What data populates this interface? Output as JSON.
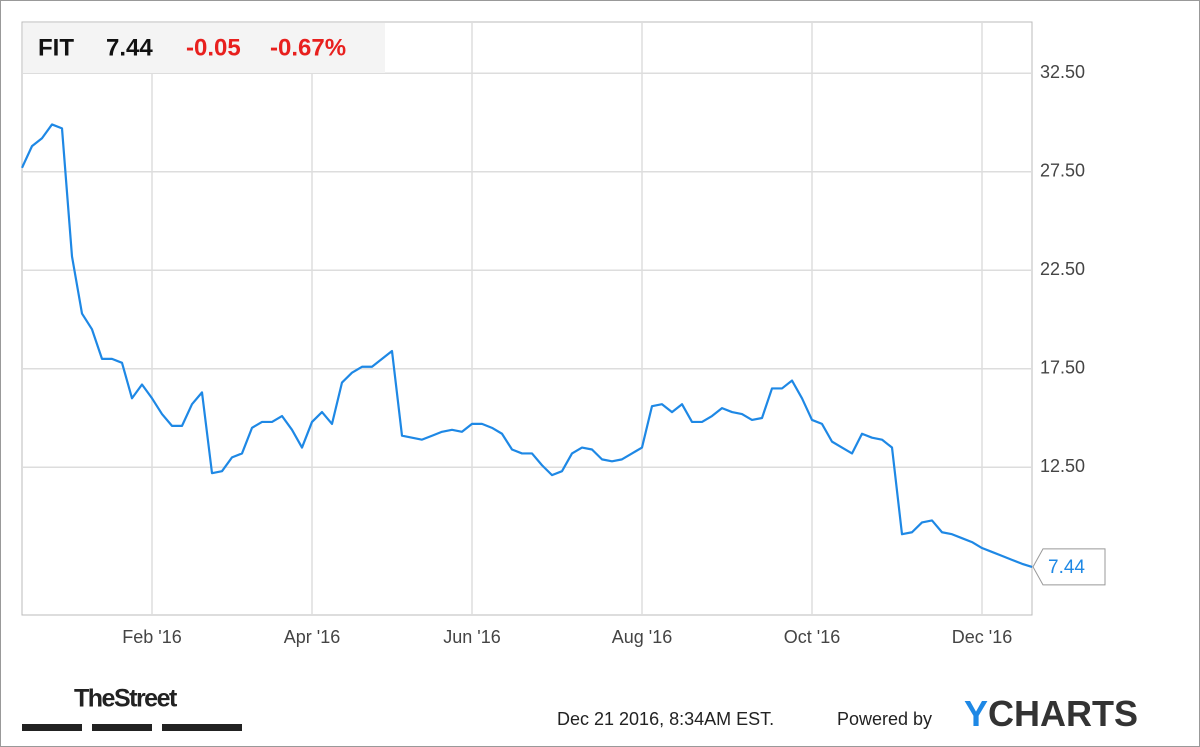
{
  "chart_data": {
    "type": "line",
    "ticker": "FIT",
    "change": "-0.05",
    "change_percent": "-0.67%",
    "color": "#1e88e5",
    "categories": [
      null,
      null,
      null,
      null,
      null,
      null,
      null,
      null,
      null,
      null,
      null,
      null,
      null,
      "Feb '16",
      null,
      null,
      null,
      null,
      null,
      null,
      null,
      null,
      null,
      null,
      null,
      null,
      null,
      null,
      null,
      "Apr '16",
      null,
      null,
      null,
      null,
      null,
      null,
      null,
      null,
      null,
      null,
      null,
      null,
      null,
      null,
      null,
      "Jun '16",
      null,
      null,
      null,
      null,
      null,
      null,
      null,
      null,
      null,
      null,
      null,
      null,
      null,
      null,
      null,
      null,
      "Aug '16",
      null,
      null,
      null,
      null,
      null,
      null,
      null,
      null,
      null,
      null,
      null,
      null,
      null,
      null,
      null,
      null,
      "Oct '16",
      null,
      null,
      null,
      null,
      null,
      null,
      null,
      null,
      null,
      null,
      null,
      null,
      null,
      null,
      null,
      null,
      "Dec '16",
      null,
      null,
      null,
      null,
      null
    ],
    "values": [
      27.7,
      28.8,
      29.2,
      29.9,
      29.7,
      23.2,
      20.3,
      19.5,
      18.0,
      18.0,
      17.8,
      16.0,
      16.7,
      16.0,
      15.2,
      14.6,
      14.6,
      15.7,
      16.3,
      12.2,
      12.3,
      13.0,
      13.2,
      14.5,
      14.8,
      14.8,
      15.1,
      14.4,
      13.5,
      14.8,
      15.3,
      14.7,
      16.8,
      17.3,
      17.6,
      17.6,
      18.0,
      18.4,
      14.1,
      14.0,
      13.9,
      14.1,
      14.3,
      14.4,
      14.3,
      14.7,
      14.7,
      14.5,
      14.2,
      13.4,
      13.2,
      13.2,
      12.6,
      12.1,
      12.3,
      13.2,
      13.5,
      13.4,
      12.9,
      12.8,
      12.9,
      13.2,
      13.5,
      15.6,
      15.7,
      15.3,
      15.7,
      14.8,
      14.8,
      15.1,
      15.5,
      15.3,
      15.2,
      14.9,
      15.0,
      16.5,
      16.5,
      16.9,
      16.0,
      14.9,
      14.7,
      13.8,
      13.5,
      13.2,
      14.2,
      14.0,
      13.9,
      13.5,
      9.1,
      9.2,
      9.7,
      9.8,
      9.2,
      9.1,
      8.9,
      8.7,
      8.4,
      8.2,
      8.0,
      7.8,
      7.6,
      7.44
    ],
    "ylim": [
      5,
      35.1
    ],
    "yticks": [
      {
        "value": 12.5,
        "label": "12.50"
      },
      {
        "value": 17.5,
        "label": "17.50"
      },
      {
        "value": 22.5,
        "label": "22.50"
      },
      {
        "value": 27.5,
        "label": "27.50"
      },
      {
        "value": 32.5,
        "label": "32.50"
      }
    ],
    "grid": true
  },
  "footer": {
    "brand": "TheStreet",
    "timestamp": "Dec 21 2016, 8:34AM EST.",
    "powered_by": "Powered by",
    "logo": "YCHARTS"
  }
}
